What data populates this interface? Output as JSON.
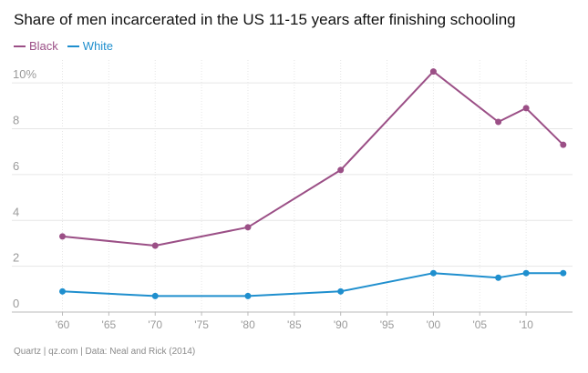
{
  "title": "Share of men incarcerated in the US 11-15 years after finishing schooling",
  "legend": [
    {
      "name": "Black",
      "color": "#9b4f86"
    },
    {
      "name": "White",
      "color": "#1f8fce"
    }
  ],
  "source": "Quartz | qz.com | Data: Neal and Rick (2014)",
  "chart_data": {
    "type": "line",
    "xlim": [
      1957,
      2015
    ],
    "ylim": [
      0,
      11
    ],
    "x_ticks": [
      1960,
      1965,
      1970,
      1975,
      1980,
      1985,
      1990,
      1995,
      2000,
      2005,
      2010
    ],
    "x_tick_labels": [
      "'60",
      "'65",
      "'70",
      "'75",
      "'80",
      "'85",
      "'90",
      "'95",
      "'00",
      "'05",
      "'10"
    ],
    "y_ticks": [
      0,
      2,
      4,
      6,
      8,
      10
    ],
    "y_tick_labels": [
      "0",
      "2",
      "4",
      "6",
      "8",
      "10%"
    ],
    "series": [
      {
        "name": "Black",
        "color": "#9b4f86",
        "x": [
          1960,
          1970,
          1980,
          1990,
          2000,
          2007,
          2010,
          2014
        ],
        "y": [
          3.3,
          2.9,
          3.7,
          6.2,
          10.5,
          8.3,
          8.9,
          7.3
        ]
      },
      {
        "name": "White",
        "color": "#1f8fce",
        "x": [
          1960,
          1970,
          1980,
          1990,
          2000,
          2007,
          2010,
          2014
        ],
        "y": [
          0.9,
          0.7,
          0.7,
          0.9,
          1.7,
          1.5,
          1.7,
          1.7
        ]
      }
    ]
  }
}
